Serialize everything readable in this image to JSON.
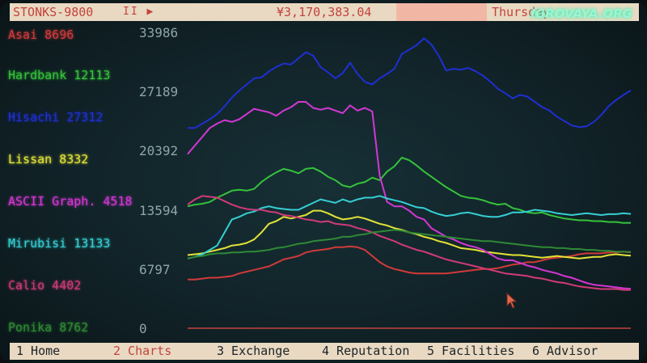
{
  "topbar": {
    "app_name": "STONKS-9800",
    "controls": "II ▶",
    "money": "¥3,170,383.04",
    "day": "Thursday"
  },
  "watermark": "IGROVAYA.ORG",
  "tabs": [
    {
      "label": "1 Home",
      "active": false
    },
    {
      "label": "2 Charts",
      "active": true
    },
    {
      "label": "3 Exchange",
      "active": false
    },
    {
      "label": "4 Reputation",
      "active": false
    },
    {
      "label": "5 Facilities",
      "active": false
    },
    {
      "label": "6 Advisor",
      "active": false
    }
  ],
  "colors": {
    "accent": "#c4433d",
    "bar_bg": "#e9d9c2"
  },
  "chart_data": {
    "type": "line",
    "yticks": [
      "33986",
      "27189",
      "20392",
      "13594",
      "6797",
      "0"
    ],
    "ylim": [
      0,
      33986
    ],
    "x": [
      0,
      1,
      2,
      3,
      4,
      5,
      6,
      7,
      8,
      9,
      10,
      11,
      12,
      13,
      14,
      15,
      16,
      17,
      18,
      19,
      20,
      21,
      22,
      23,
      24,
      25,
      26,
      27,
      28,
      29,
      30,
      31,
      32,
      33,
      34,
      35,
      36,
      37,
      38,
      39,
      40,
      41,
      42,
      43,
      44,
      45,
      46,
      47,
      48,
      49,
      50,
      51,
      52,
      53,
      54,
      55,
      56,
      57,
      58,
      59,
      60
    ],
    "series": [
      {
        "name": "Asai",
        "color": "#d13a3a",
        "values": [
          5600,
          5600,
          5700,
          5800,
          5800,
          5900,
          6000,
          6300,
          6500,
          6700,
          6900,
          7100,
          7500,
          7900,
          8100,
          8300,
          8700,
          8900,
          9000,
          9100,
          9300,
          9300,
          9400,
          9300,
          9000,
          8300,
          7600,
          7100,
          6800,
          6600,
          6400,
          6300,
          6300,
          6300,
          6300,
          6300,
          6400,
          6500,
          6600,
          6700,
          6800,
          6800,
          6900,
          7100,
          7300,
          7400,
          7600,
          7600,
          7800,
          8000,
          8100,
          8200,
          8300,
          8500,
          8600,
          8600,
          8600,
          8700,
          8700,
          8800,
          8696
        ]
      },
      {
        "name": "Hardbank",
        "color": "#35c23a",
        "values": [
          14000,
          14200,
          14300,
          14500,
          15000,
          15400,
          15800,
          15900,
          15800,
          16000,
          16800,
          17400,
          17900,
          18300,
          18100,
          17800,
          18300,
          18400,
          18000,
          17400,
          17000,
          16400,
          16200,
          16600,
          16800,
          17300,
          17000,
          18000,
          18600,
          19600,
          19300,
          18700,
          18000,
          17400,
          16800,
          16200,
          15700,
          15200,
          15000,
          14900,
          14700,
          14400,
          14200,
          14300,
          13800,
          13600,
          13300,
          13200,
          13300,
          13000,
          12800,
          12600,
          12500,
          12400,
          12400,
          12300,
          12300,
          12200,
          12200,
          12100,
          12113
        ]
      },
      {
        "name": "Hisachi",
        "color": "#1f2fd3",
        "values": [
          23000,
          23000,
          23500,
          24000,
          24600,
          25500,
          26500,
          27300,
          28000,
          28700,
          28800,
          29500,
          30000,
          30400,
          30300,
          31000,
          31700,
          31300,
          30000,
          29400,
          28700,
          29300,
          30500,
          29200,
          28300,
          28000,
          28700,
          29200,
          29800,
          31500,
          32000,
          32500,
          33300,
          32600,
          31300,
          29600,
          29800,
          29700,
          29900,
          29500,
          29000,
          28300,
          27500,
          27000,
          26400,
          26800,
          26600,
          26000,
          25400,
          25000,
          24300,
          23800,
          23300,
          23100,
          23200,
          23700,
          24500,
          25500,
          26200,
          26800,
          27312
        ]
      },
      {
        "name": "Lissan",
        "color": "#e3e336",
        "values": [
          8400,
          8500,
          8600,
          8800,
          9000,
          9200,
          9500,
          9600,
          9800,
          10200,
          11000,
          12000,
          12300,
          12800,
          12600,
          12800,
          13000,
          13500,
          13500,
          13200,
          12800,
          12500,
          12600,
          12800,
          12600,
          12300,
          12000,
          11800,
          11500,
          11300,
          11000,
          10800,
          10500,
          10300,
          10000,
          9800,
          9500,
          9200,
          9100,
          9000,
          8800,
          8700,
          8600,
          8500,
          8400,
          8400,
          8300,
          8200,
          8100,
          8200,
          8300,
          8200,
          8100,
          8000,
          8100,
          8200,
          8200,
          8400,
          8500,
          8400,
          8332
        ]
      },
      {
        "name": "ASCII Graph.",
        "color": "#d336d3",
        "values": [
          20000,
          21000,
          22000,
          23000,
          23500,
          23900,
          23700,
          24000,
          24600,
          25200,
          25000,
          24800,
          24400,
          25000,
          25400,
          26000,
          26000,
          25300,
          25100,
          25300,
          25000,
          24700,
          25600,
          25000,
          25300,
          24900,
          17500,
          14500,
          14000,
          14000,
          13500,
          12800,
          12500,
          11500,
          11000,
          10500,
          10200,
          9800,
          9500,
          9300,
          9000,
          8500,
          8000,
          7800,
          7800,
          7500,
          7200,
          7000,
          6700,
          6500,
          6300,
          6000,
          5800,
          5500,
          5200,
          5000,
          4900,
          4800,
          4700,
          4600,
          4518
        ]
      },
      {
        "name": "Mirubisi",
        "color": "#35cfd3",
        "values": [
          8000,
          8200,
          8500,
          9000,
          9500,
          11000,
          12500,
          12800,
          13200,
          13400,
          13800,
          14000,
          13800,
          13700,
          13600,
          13600,
          14000,
          14400,
          14800,
          14600,
          14400,
          14800,
          14500,
          14800,
          15000,
          15000,
          15200,
          14900,
          14700,
          14500,
          14200,
          13900,
          13800,
          13400,
          13100,
          12900,
          13000,
          13200,
          13300,
          13100,
          12900,
          12800,
          12800,
          13000,
          13300,
          13300,
          13400,
          13600,
          13500,
          13400,
          13200,
          13100,
          13000,
          13100,
          13200,
          13100,
          13000,
          13100,
          13100,
          13200,
          13133
        ]
      },
      {
        "name": "Calio",
        "color": "#d13a78",
        "values": [
          14200,
          14800,
          15200,
          15100,
          15000,
          14600,
          14200,
          13900,
          13700,
          13600,
          13600,
          13400,
          13300,
          13000,
          12900,
          12700,
          12500,
          12400,
          12200,
          12300,
          12000,
          11900,
          11800,
          11500,
          11300,
          11000,
          10600,
          10300,
          10000,
          9600,
          9300,
          9000,
          8800,
          8500,
          8200,
          7900,
          7700,
          7500,
          7300,
          7100,
          6900,
          6700,
          6500,
          6300,
          6200,
          6100,
          6000,
          5800,
          5700,
          5500,
          5300,
          5200,
          5000,
          4800,
          4700,
          4600,
          4500,
          4500,
          4500,
          4400,
          4402
        ]
      },
      {
        "name": "Ponika",
        "color": "#2f8a34",
        "values": [
          8000,
          8200,
          8300,
          8500,
          8600,
          8600,
          8700,
          8700,
          8800,
          8800,
          8900,
          9000,
          9200,
          9300,
          9500,
          9700,
          9800,
          10000,
          10100,
          10200,
          10300,
          10500,
          10500,
          10700,
          10800,
          11000,
          11100,
          11200,
          11300,
          11200,
          11000,
          10900,
          10800,
          10700,
          10600,
          10500,
          10400,
          10300,
          10200,
          10100,
          10000,
          10000,
          9900,
          9800,
          9700,
          9600,
          9500,
          9400,
          9300,
          9300,
          9200,
          9200,
          9100,
          9100,
          9000,
          9000,
          8900,
          8900,
          8800,
          8800,
          8762
        ]
      }
    ],
    "baseline_color": "#c4433d"
  },
  "legend": [
    {
      "name": "Asai",
      "value": "8696",
      "color": "#d13a3a"
    },
    {
      "name": "Hardbank",
      "value": "12113",
      "color": "#35c23a"
    },
    {
      "name": "Hisachi",
      "value": "27312",
      "color": "#1f2fd3"
    },
    {
      "name": "Lissan",
      "value": "8332",
      "color": "#e3e336"
    },
    {
      "name": "ASCII Graph.",
      "value": "4518",
      "color": "#d336d3"
    },
    {
      "name": "Mirubisi",
      "value": "13133",
      "color": "#35cfd3"
    },
    {
      "name": "Calio",
      "value": "4402",
      "color": "#d13a78"
    },
    {
      "name": "Ponika",
      "value": "8762",
      "color": "#2f8a34"
    }
  ]
}
